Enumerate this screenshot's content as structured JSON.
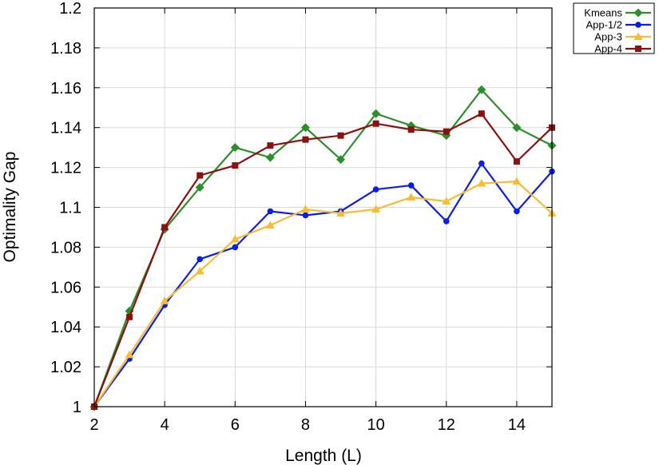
{
  "chart_data": {
    "type": "line",
    "xlabel": "Length (L)",
    "ylabel": "Optimality Gap",
    "xlim": [
      2,
      15
    ],
    "ylim": [
      1.0,
      1.2
    ],
    "xticks": [
      2,
      4,
      6,
      8,
      10,
      12,
      14
    ],
    "yticks": [
      1,
      1.02,
      1.04,
      1.06,
      1.08,
      1.1,
      1.12,
      1.14,
      1.16,
      1.18,
      1.2
    ],
    "ytick_labels": [
      "1",
      "1.02",
      "1.04",
      "1.06",
      "1.08",
      "1.1",
      "1.12",
      "1.14",
      "1.16",
      "1.18",
      "1.2"
    ],
    "grid": true,
    "legend_position": "outside-top-right",
    "x": [
      2,
      3,
      4,
      5,
      6,
      7,
      8,
      9,
      10,
      11,
      12,
      13,
      14,
      15
    ],
    "series": [
      {
        "name": "Kmeans",
        "color": "#2b8f2b",
        "marker": "diamond",
        "values": [
          1.0,
          1.048,
          1.089,
          1.11,
          1.13,
          1.125,
          1.14,
          1.124,
          1.147,
          1.141,
          1.136,
          1.159,
          1.14,
          1.131
        ]
      },
      {
        "name": "App-1/2",
        "color": "#0a1ee8",
        "marker": "circle",
        "values": [
          1.0,
          1.024,
          1.051,
          1.074,
          1.08,
          1.098,
          1.096,
          1.098,
          1.109,
          1.111,
          1.093,
          1.122,
          1.098,
          1.118
        ]
      },
      {
        "name": "App-3",
        "color": "#f8bc32",
        "marker": "triangle",
        "values": [
          1.0,
          1.026,
          1.053,
          1.068,
          1.084,
          1.091,
          1.099,
          1.097,
          1.099,
          1.105,
          1.103,
          1.112,
          1.113,
          1.097
        ]
      },
      {
        "name": "App-4",
        "color": "#8b1010",
        "marker": "square",
        "values": [
          1.0,
          1.045,
          1.09,
          1.116,
          1.121,
          1.131,
          1.134,
          1.136,
          1.142,
          1.139,
          1.138,
          1.147,
          1.123,
          1.14
        ]
      }
    ]
  }
}
